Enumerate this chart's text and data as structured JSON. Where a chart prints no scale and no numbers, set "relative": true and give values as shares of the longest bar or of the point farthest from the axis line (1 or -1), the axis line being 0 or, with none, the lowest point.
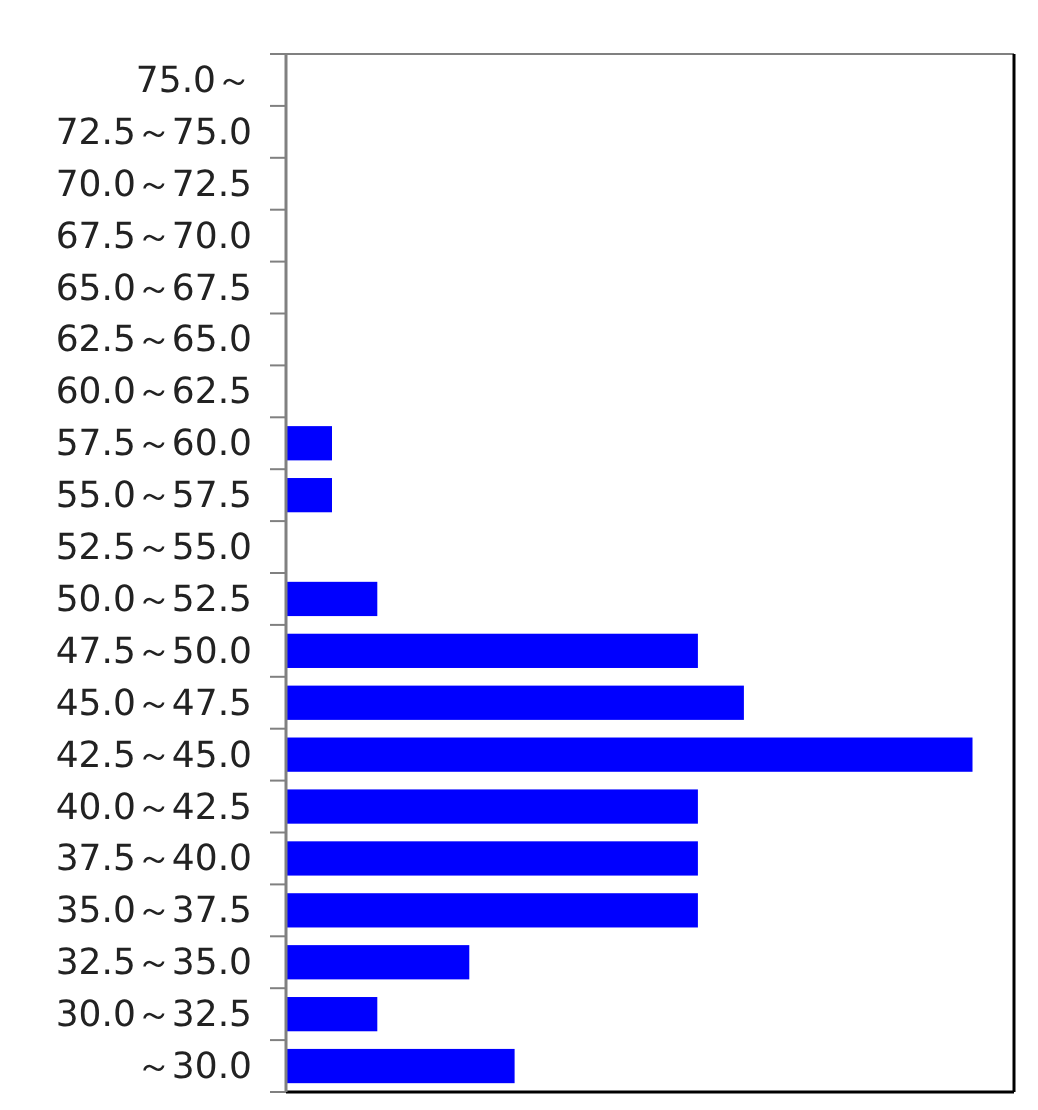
{
  "chart_data": {
    "type": "bar",
    "orientation": "horizontal",
    "relative": true,
    "categories": [
      "75.0～",
      "72.5～75.0",
      "70.0～72.5",
      "67.5～70.0",
      "65.0～67.5",
      "62.5～65.0",
      "60.0～62.5",
      "57.5～60.0",
      "55.0～57.5",
      "52.5～55.0",
      "50.0～52.5",
      "47.5～50.0",
      "45.0～47.5",
      "42.5～45.0",
      "40.0～42.5",
      "37.5～40.0",
      "35.0～37.5",
      "32.5～35.0",
      "30.0～32.5",
      "～30.0"
    ],
    "values": [
      0,
      0,
      0,
      0,
      0,
      0,
      0,
      0.067,
      0.067,
      0,
      0.133,
      0.6,
      0.667,
      1,
      0.6,
      0.6,
      0.6,
      0.267,
      0.133,
      0.333
    ],
    "color": "#0000ff"
  }
}
